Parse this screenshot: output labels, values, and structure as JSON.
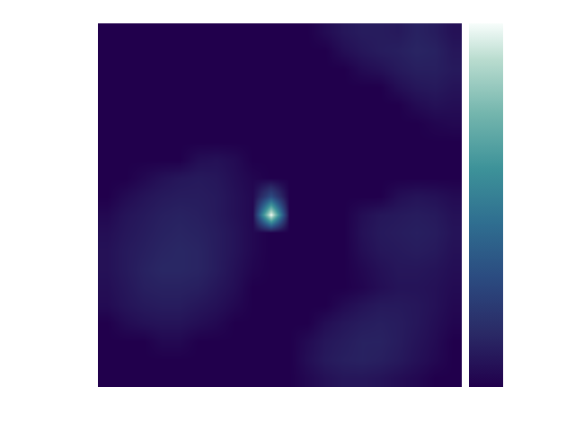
{
  "chart_data": {
    "type": "heatmap",
    "tick_labels": false,
    "xlim": [
      -0.5,
      19.5
    ],
    "ylim": [
      19.5,
      -0.5
    ],
    "colorbar_range": [
      0,
      100
    ],
    "cells": [
      [
        0,
        0,
        0,
        0,
        0,
        0,
        0,
        0,
        0,
        0,
        0,
        0,
        4,
        8,
        10,
        10,
        9,
        12,
        10,
        6
      ],
      [
        0,
        0,
        0,
        0,
        0,
        0,
        0,
        0,
        0,
        0,
        0,
        0,
        0,
        5,
        8,
        10,
        11,
        13,
        12,
        8
      ],
      [
        0,
        0,
        0,
        0,
        0,
        0,
        0,
        0,
        0,
        0,
        0,
        0,
        0,
        0,
        4,
        6,
        9,
        11,
        11,
        9
      ],
      [
        0,
        0,
        0,
        0,
        0,
        0,
        0,
        0,
        0,
        0,
        0,
        0,
        0,
        0,
        0,
        0,
        5,
        8,
        9,
        7
      ],
      [
        0,
        0,
        0,
        0,
        0,
        0,
        0,
        0,
        0,
        0,
        0,
        0,
        0,
        0,
        0,
        0,
        0,
        4,
        6,
        5
      ],
      [
        0,
        0,
        0,
        0,
        0,
        0,
        0,
        0,
        0,
        0,
        0,
        0,
        0,
        0,
        0,
        0,
        0,
        0,
        2,
        3
      ],
      [
        0,
        0,
        0,
        0,
        0,
        0,
        0,
        0,
        0,
        0,
        0,
        0,
        0,
        0,
        0,
        0,
        0,
        0,
        0,
        0
      ],
      [
        0,
        0,
        0,
        0,
        0,
        5,
        6,
        4,
        0,
        0,
        0,
        0,
        0,
        0,
        0,
        0,
        0,
        0,
        0,
        0
      ],
      [
        0,
        0,
        3,
        6,
        8,
        9,
        8,
        5,
        2,
        0,
        0,
        0,
        0,
        0,
        0,
        0,
        0,
        0,
        0,
        0
      ],
      [
        0,
        4,
        7,
        9,
        10,
        10,
        9,
        6,
        3,
        30,
        0,
        0,
        0,
        0,
        0,
        0,
        5,
        7,
        6,
        4
      ],
      [
        3,
        7,
        9,
        11,
        12,
        11,
        9,
        6,
        3,
        100,
        0,
        0,
        0,
        0,
        5,
        8,
        9,
        10,
        9,
        6
      ],
      [
        5,
        8,
        10,
        12,
        13,
        12,
        10,
        7,
        3,
        0,
        0,
        0,
        0,
        0,
        6,
        9,
        10,
        11,
        10,
        7
      ],
      [
        6,
        9,
        11,
        13,
        14,
        13,
        10,
        7,
        3,
        0,
        0,
        0,
        0,
        0,
        5,
        8,
        9,
        10,
        9,
        6
      ],
      [
        6,
        9,
        12,
        14,
        14,
        13,
        10,
        6,
        2,
        0,
        0,
        0,
        0,
        0,
        3,
        6,
        8,
        8,
        7,
        5
      ],
      [
        5,
        8,
        11,
        12,
        12,
        11,
        8,
        5,
        0,
        0,
        0,
        0,
        0,
        0,
        2,
        5,
        7,
        7,
        6,
        4
      ],
      [
        4,
        7,
        9,
        10,
        10,
        8,
        6,
        3,
        0,
        0,
        0,
        0,
        0,
        4,
        7,
        9,
        9,
        8,
        6,
        3
      ],
      [
        0,
        4,
        6,
        7,
        7,
        5,
        3,
        0,
        0,
        0,
        0,
        0,
        5,
        8,
        10,
        11,
        10,
        8,
        5,
        2
      ],
      [
        0,
        0,
        0,
        3,
        3,
        0,
        0,
        0,
        0,
        0,
        0,
        4,
        8,
        10,
        12,
        12,
        10,
        7,
        4,
        0
      ],
      [
        0,
        0,
        0,
        0,
        0,
        0,
        0,
        0,
        0,
        0,
        0,
        5,
        9,
        11,
        12,
        11,
        9,
        6,
        3,
        0
      ],
      [
        0,
        0,
        0,
        0,
        0,
        0,
        0,
        0,
        0,
        0,
        0,
        3,
        6,
        8,
        8,
        7,
        5,
        3,
        0,
        0
      ]
    ]
  }
}
